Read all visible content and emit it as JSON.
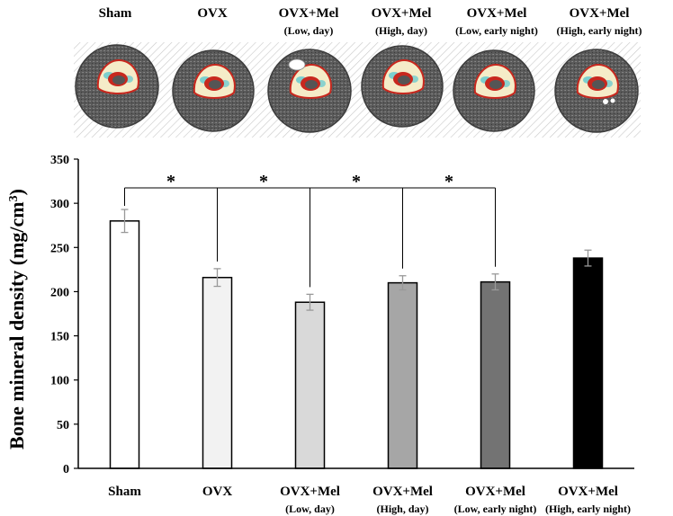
{
  "chart_data": {
    "type": "bar",
    "title": "",
    "xlabel": "",
    "ylabel": "Bone mineral density (mg/cm",
    "ylabel_sup": "3",
    "ylabel_close": ")",
    "ylim": [
      0,
      350
    ],
    "yticks": [
      0,
      50,
      100,
      150,
      200,
      250,
      300,
      350
    ],
    "grid": false,
    "categories": [
      {
        "name": "Sham",
        "sub": ""
      },
      {
        "name": "OVX",
        "sub": ""
      },
      {
        "name": "OVX+Mel",
        "sub": "(Low,  day)"
      },
      {
        "name": "OVX+Mel",
        "sub": "(High,  day)"
      },
      {
        "name": "OVX+Mel",
        "sub": "(Low,  early night)"
      },
      {
        "name": "OVX+Mel",
        "sub": "(High,  early night)"
      }
    ],
    "values": [
      280,
      216,
      188,
      210,
      211,
      238
    ],
    "errors": [
      13,
      10,
      9,
      8,
      9,
      9
    ],
    "bar_colors": [
      "#ffffff",
      "#f2f2f2",
      "#d9d9d9",
      "#a6a6a6",
      "#737373",
      "#000000"
    ],
    "significance": {
      "marker": "*",
      "reference": 0,
      "compared": [
        1,
        2,
        3,
        4
      ]
    }
  },
  "images": {
    "colors": {
      "hatch": "#c8c8c8",
      "tissue": "#5a5a5a",
      "bone": "#f5ecc8",
      "cyan": "#5ec8d0",
      "red": "#c8281e",
      "marrow": "#555555"
    }
  }
}
